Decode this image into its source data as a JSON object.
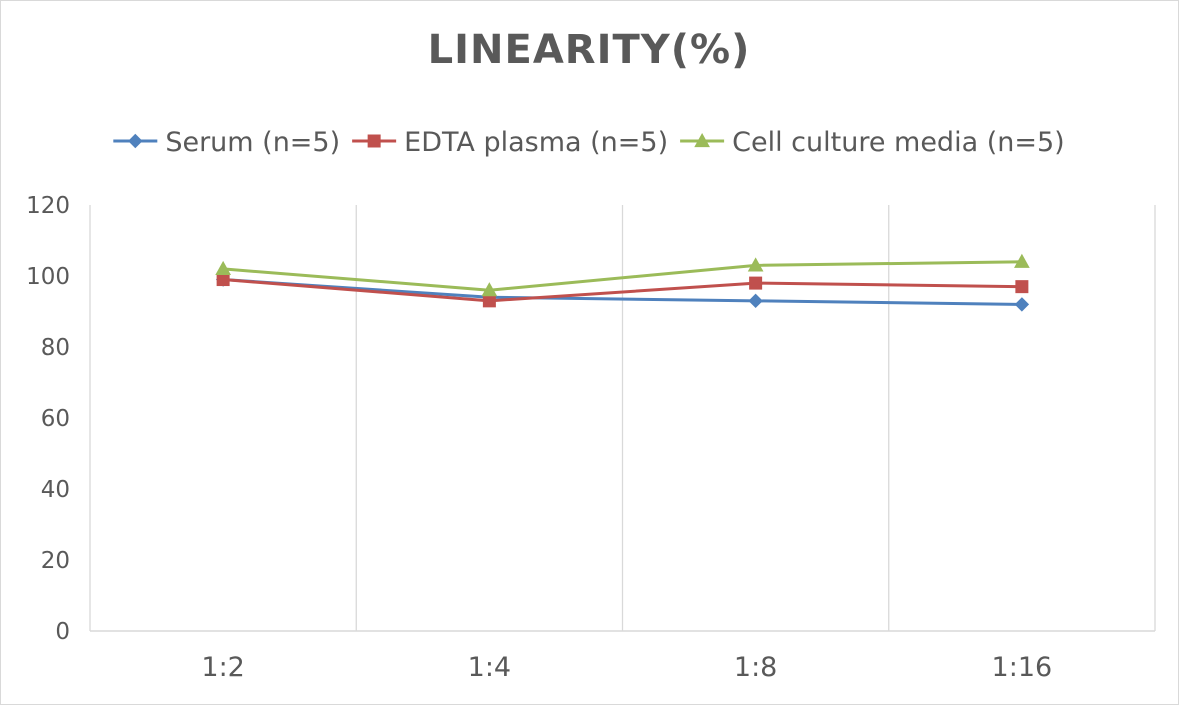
{
  "chart_data": {
    "type": "line",
    "title": "LINEARITY(%)",
    "xlabel": "",
    "ylabel": "",
    "categories": [
      "1:2",
      "1:4",
      "1:8",
      "1:16"
    ],
    "ylim": [
      0,
      120
    ],
    "yticks": [
      0,
      20,
      40,
      60,
      80,
      100,
      120
    ],
    "grid": "vertical",
    "legend": "top",
    "series": [
      {
        "name": "Serum (n=5)",
        "values": [
          99,
          94,
          93,
          92
        ],
        "color": "#4f81bd",
        "marker": "diamond"
      },
      {
        "name": "EDTA plasma (n=5)",
        "values": [
          99,
          93,
          98,
          97
        ],
        "color": "#c0504d",
        "marker": "square"
      },
      {
        "name": "Cell culture media (n=5)",
        "values": [
          102,
          96,
          103,
          104
        ],
        "color": "#9bbb59",
        "marker": "triangle"
      }
    ]
  }
}
